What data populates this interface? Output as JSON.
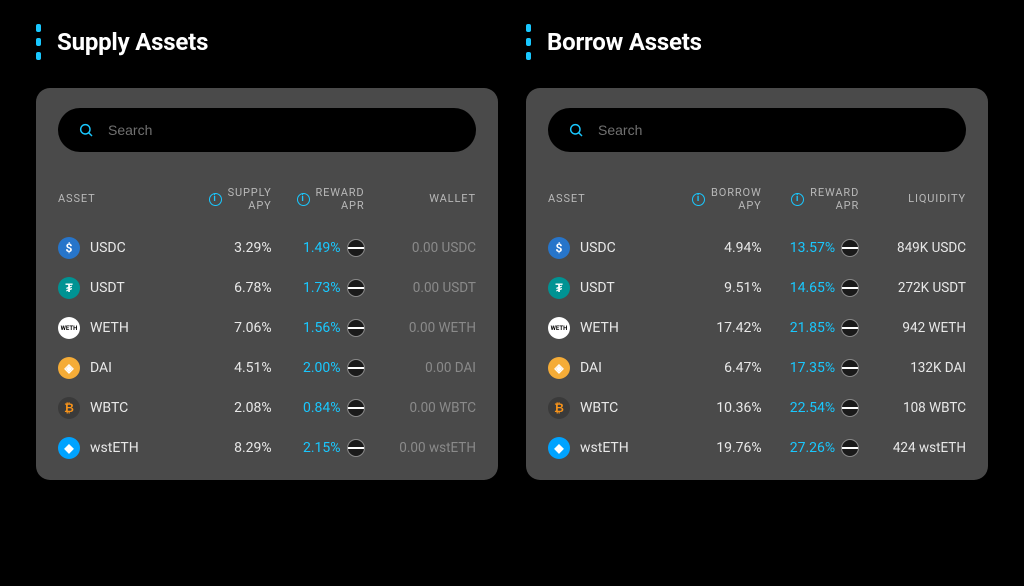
{
  "colors": {
    "page_bg": "#000000",
    "card_bg": "#4a4a4a",
    "accent": "#19c8ff",
    "text_primary": "#ffffff",
    "text_secondary": "#d0d0d0",
    "text_muted": "#8a8a8a"
  },
  "panels": {
    "supply": {
      "title": "Supply Assets",
      "search_placeholder": "Search",
      "columns": {
        "asset": "ASSET",
        "apy_line1": "SUPPLY",
        "apy_line2": "APY",
        "reward_line1": "REWARD",
        "reward_line2": "APR",
        "wallet": "WALLET"
      },
      "rows": [
        {
          "symbol": "USDC",
          "apy": "3.29%",
          "reward": "1.49%",
          "wallet": "0.00 USDC",
          "icon_bg": "#2775ca",
          "icon_text": "$"
        },
        {
          "symbol": "USDT",
          "apy": "6.78%",
          "reward": "1.73%",
          "wallet": "0.00 USDT",
          "icon_bg": "#009393",
          "icon_text": "₮"
        },
        {
          "symbol": "WETH",
          "apy": "7.06%",
          "reward": "1.56%",
          "wallet": "0.00 WETH",
          "icon_bg": "#ffffff",
          "icon_text": "WETH",
          "icon_fg": "#000000"
        },
        {
          "symbol": "DAI",
          "apy": "4.51%",
          "reward": "2.00%",
          "wallet": "0.00 DAI",
          "icon_bg": "#f5ac37",
          "icon_text": "◈"
        },
        {
          "symbol": "WBTC",
          "apy": "2.08%",
          "reward": "0.84%",
          "wallet": "0.00 WBTC",
          "icon_bg": "#3a3a3a",
          "icon_text": "₿",
          "icon_fg": "#f7931a"
        },
        {
          "symbol": "wstETH",
          "apy": "8.29%",
          "reward": "2.15%",
          "wallet": "0.00 wstETH",
          "icon_bg": "#00a3ff",
          "icon_text": "◆"
        }
      ]
    },
    "borrow": {
      "title": "Borrow Assets",
      "search_placeholder": "Search",
      "columns": {
        "asset": "ASSET",
        "apy_line1": "BORROW",
        "apy_line2": "APY",
        "reward_line1": "REWARD",
        "reward_line2": "APR",
        "liquidity": "LIQUIDITY"
      },
      "rows": [
        {
          "symbol": "USDC",
          "apy": "4.94%",
          "reward": "13.57%",
          "liquidity": "849K USDC",
          "icon_bg": "#2775ca",
          "icon_text": "$"
        },
        {
          "symbol": "USDT",
          "apy": "9.51%",
          "reward": "14.65%",
          "liquidity": "272K USDT",
          "icon_bg": "#009393",
          "icon_text": "₮"
        },
        {
          "symbol": "WETH",
          "apy": "17.42%",
          "reward": "21.85%",
          "liquidity": "942 WETH",
          "icon_bg": "#ffffff",
          "icon_text": "WETH",
          "icon_fg": "#000000"
        },
        {
          "symbol": "DAI",
          "apy": "6.47%",
          "reward": "17.35%",
          "liquidity": "132K DAI",
          "icon_bg": "#f5ac37",
          "icon_text": "◈"
        },
        {
          "symbol": "WBTC",
          "apy": "10.36%",
          "reward": "22.54%",
          "liquidity": "108 WBTC",
          "icon_bg": "#3a3a3a",
          "icon_text": "₿",
          "icon_fg": "#f7931a"
        },
        {
          "symbol": "wstETH",
          "apy": "19.76%",
          "reward": "27.26%",
          "liquidity": "424 wstETH",
          "icon_bg": "#00a3ff",
          "icon_text": "◆"
        }
      ]
    }
  }
}
